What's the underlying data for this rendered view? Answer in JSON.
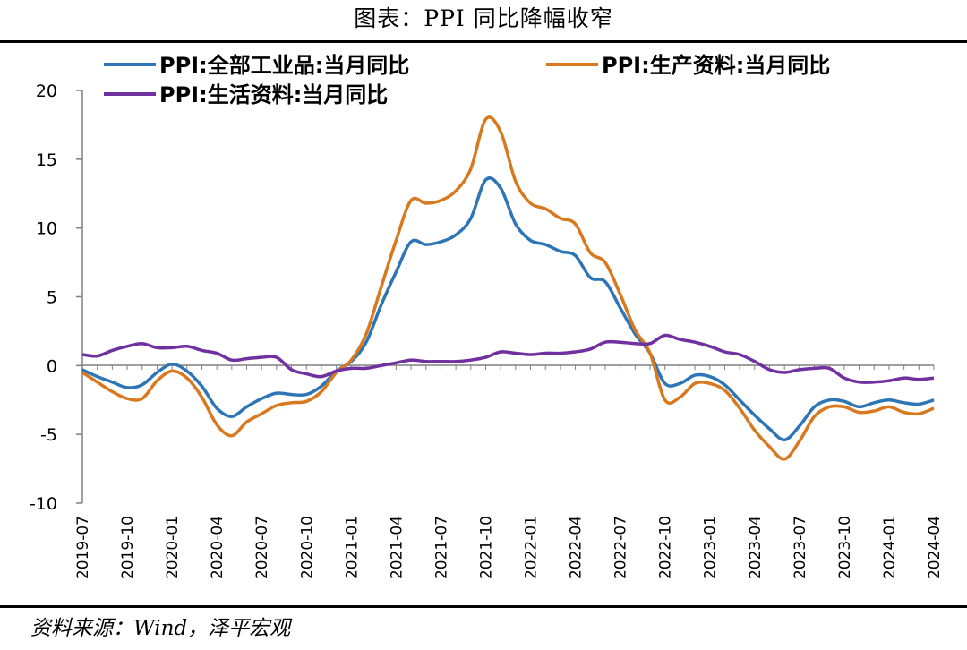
{
  "title": "图表：PPI 同比降幅收窄",
  "source": "资料来源：Wind，泽平宏观",
  "colors": {
    "blue": "#2e75b6",
    "orange": "#d9791f",
    "purple": "#7030a0"
  },
  "chart_data": {
    "type": "line",
    "title": "图表：PPI 同比降幅收窄",
    "xlabel": "",
    "ylabel": "",
    "ylim": [
      -10,
      20
    ],
    "yticks": [
      "20",
      "15",
      "10",
      "5",
      "0",
      "-5",
      "-10"
    ],
    "grid": false,
    "legend": "top",
    "x_tick_labels": [
      "2019-07",
      "2019-10",
      "2020-01",
      "2020-04",
      "2020-07",
      "2020-10",
      "2021-01",
      "2021-04",
      "2021-07",
      "2021-10",
      "2022-01",
      "2022-04",
      "2022-07",
      "2022-10",
      "2023-01",
      "2023-04",
      "2023-07",
      "2023-10",
      "2024-01",
      "2024-04"
    ],
    "x": [
      "2019-07",
      "2019-08",
      "2019-09",
      "2019-10",
      "2019-11",
      "2019-12",
      "2020-01",
      "2020-02",
      "2020-03",
      "2020-04",
      "2020-05",
      "2020-06",
      "2020-07",
      "2020-08",
      "2020-09",
      "2020-10",
      "2020-11",
      "2020-12",
      "2021-01",
      "2021-02",
      "2021-03",
      "2021-04",
      "2021-05",
      "2021-06",
      "2021-07",
      "2021-08",
      "2021-09",
      "2021-10",
      "2021-11",
      "2021-12",
      "2022-01",
      "2022-02",
      "2022-03",
      "2022-04",
      "2022-05",
      "2022-06",
      "2022-07",
      "2022-08",
      "2022-09",
      "2022-10",
      "2022-11",
      "2022-12",
      "2023-01",
      "2023-02",
      "2023-03",
      "2023-04",
      "2023-05",
      "2023-06",
      "2023-07",
      "2023-08",
      "2023-09",
      "2023-10",
      "2023-11",
      "2023-12",
      "2024-01",
      "2024-02",
      "2024-03",
      "2024-04"
    ],
    "series": [
      {
        "name": "PPI:全部工业品:当月同比",
        "color": "#2e75b6",
        "values": [
          -0.3,
          -0.8,
          -1.2,
          -1.6,
          -1.4,
          -0.5,
          0.1,
          -0.4,
          -1.5,
          -3.1,
          -3.7,
          -3.0,
          -2.4,
          -2.0,
          -2.1,
          -2.1,
          -1.5,
          -0.4,
          0.3,
          1.7,
          4.4,
          6.8,
          9.0,
          8.8,
          9.0,
          9.5,
          10.7,
          13.5,
          12.9,
          10.3,
          9.1,
          8.8,
          8.3,
          8.0,
          6.4,
          6.1,
          4.2,
          2.3,
          0.9,
          -1.3,
          -1.3,
          -0.7,
          -0.8,
          -1.4,
          -2.5,
          -3.6,
          -4.6,
          -5.4,
          -4.4,
          -3.0,
          -2.5,
          -2.6,
          -3.0,
          -2.7,
          -2.5,
          -2.7,
          -2.8,
          -2.5
        ]
      },
      {
        "name": "PPI:生产资料:当月同比",
        "color": "#d9791f",
        "values": [
          -0.5,
          -1.2,
          -1.9,
          -2.4,
          -2.4,
          -1.1,
          -0.4,
          -0.9,
          -2.3,
          -4.3,
          -5.1,
          -4.1,
          -3.5,
          -2.9,
          -2.7,
          -2.6,
          -1.9,
          -0.5,
          0.4,
          2.3,
          5.7,
          9.1,
          12.0,
          11.8,
          12.0,
          12.7,
          14.3,
          17.9,
          17.0,
          13.4,
          11.8,
          11.4,
          10.7,
          10.3,
          8.2,
          7.5,
          5.2,
          2.6,
          0.9,
          -2.5,
          -2.3,
          -1.3,
          -1.3,
          -1.8,
          -3.1,
          -4.7,
          -5.9,
          -6.8,
          -5.5,
          -3.7,
          -3.0,
          -3.0,
          -3.4,
          -3.3,
          -3.0,
          -3.4,
          -3.5,
          -3.1
        ]
      },
      {
        "name": "PPI:生活资料:当月同比",
        "color": "#7030a0",
        "values": [
          0.8,
          0.7,
          1.1,
          1.4,
          1.6,
          1.3,
          1.3,
          1.4,
          1.1,
          0.9,
          0.4,
          0.5,
          0.6,
          0.6,
          -0.3,
          -0.6,
          -0.8,
          -0.4,
          -0.2,
          -0.2,
          0.0,
          0.2,
          0.4,
          0.3,
          0.3,
          0.3,
          0.4,
          0.6,
          1.0,
          0.9,
          0.8,
          0.9,
          0.9,
          1.0,
          1.2,
          1.7,
          1.7,
          1.6,
          1.6,
          2.2,
          1.9,
          1.7,
          1.4,
          1.0,
          0.8,
          0.3,
          -0.3,
          -0.5,
          -0.3,
          -0.2,
          -0.2,
          -0.9,
          -1.2,
          -1.2,
          -1.1,
          -0.9,
          -1.0,
          -0.9
        ]
      }
    ]
  }
}
